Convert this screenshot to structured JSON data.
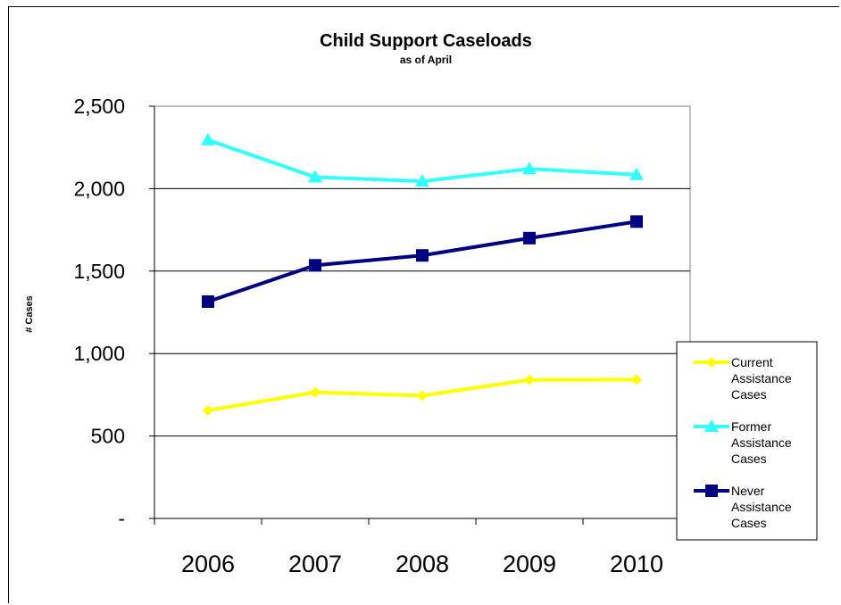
{
  "chart_data": {
    "type": "line",
    "title": "Child Support Caseloads",
    "subtitle": "as of April",
    "ylabel": "# Cases",
    "xlabel": "",
    "categories": [
      "2006",
      "2007",
      "2008",
      "2009",
      "2010"
    ],
    "ylim": [
      0,
      2500
    ],
    "yticks": [
      0,
      500,
      1000,
      1500,
      2000,
      2500
    ],
    "ytick_labels": [
      "-",
      "500",
      "1,000",
      "1,500",
      "2,000",
      "2,500"
    ],
    "grid": true,
    "legend_position": "right",
    "series": [
      {
        "name": "Current Assistance Cases",
        "legend_lines": [
          "Current",
          "Assistance",
          "Cases"
        ],
        "color": "#FFFF00",
        "marker": "diamond",
        "values": [
          655,
          765,
          745,
          840,
          842
        ]
      },
      {
        "name": "Former Assistance Cases",
        "legend_lines": [
          "Former",
          "Assistance",
          "Cases"
        ],
        "color": "#33FFFF",
        "marker": "triangle",
        "values": [
          2295,
          2070,
          2045,
          2120,
          2085
        ]
      },
      {
        "name": "Never Assistance Cases",
        "legend_lines": [
          "Never",
          "Assistance",
          "Cases"
        ],
        "color": "#000080",
        "marker": "square",
        "values": [
          1315,
          1535,
          1595,
          1700,
          1800
        ]
      }
    ]
  }
}
